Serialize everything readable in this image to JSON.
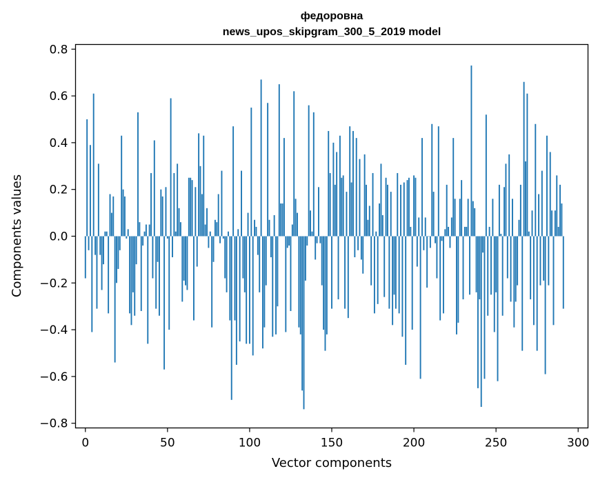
{
  "chart_data": {
    "type": "bar",
    "title": "федоровна",
    "subtitle": "news_upos_skipgram_300_5_2019 model",
    "xlabel": "Vector components",
    "ylabel": "Components values",
    "xlim": [
      -6,
      306
    ],
    "ylim": [
      -0.82,
      0.82
    ],
    "xticks": [
      0,
      50,
      100,
      150,
      200,
      250,
      300
    ],
    "xtick_labels": [
      "0",
      "50",
      "100",
      "150",
      "200",
      "250",
      "300"
    ],
    "yticks": [
      -0.8,
      -0.6,
      -0.4,
      -0.2,
      0.0,
      0.2,
      0.4,
      0.6,
      0.8
    ],
    "ytick_labels": [
      "−0.8",
      "−0.6",
      "−0.4",
      "−0.2",
      "0.0",
      "0.2",
      "0.4",
      "0.6",
      "0.8"
    ],
    "bar_color": "#1f77b4",
    "grid": false,
    "values": [
      -0.18,
      0.5,
      -0.06,
      0.39,
      -0.41,
      0.61,
      -0.08,
      -0.31,
      0.31,
      -0.08,
      -0.23,
      -0.12,
      0.02,
      0.02,
      -0.33,
      0.18,
      0.1,
      0.17,
      -0.54,
      -0.2,
      -0.14,
      -0.06,
      0.43,
      0.2,
      0.17,
      -0.01,
      0.03,
      -0.33,
      -0.38,
      -0.24,
      -0.34,
      -0.12,
      0.53,
      0.06,
      -0.32,
      -0.04,
      0.02,
      0.05,
      -0.46,
      0.05,
      0.27,
      -0.18,
      0.41,
      -0.31,
      -0.11,
      -0.34,
      0.2,
      0.17,
      -0.57,
      0.21,
      -0.01,
      -0.4,
      0.59,
      -0.09,
      0.27,
      0.02,
      0.31,
      0.12,
      0.06,
      -0.28,
      -0.19,
      -0.21,
      -0.23,
      0.25,
      0.25,
      0.24,
      -0.36,
      0.21,
      -0.13,
      0.44,
      0.3,
      0.18,
      0.43,
      0.05,
      0.12,
      -0.05,
      0.02,
      -0.39,
      -0.11,
      0.07,
      0.06,
      0.18,
      -0.03,
      0.28,
      -0.01,
      -0.18,
      -0.24,
      0.02,
      -0.36,
      -0.7,
      0.47,
      -0.36,
      -0.55,
      0.03,
      -0.45,
      0.28,
      -0.18,
      -0.24,
      -0.46,
      0.1,
      -0.46,
      0.55,
      -0.51,
      0.07,
      0.04,
      -0.08,
      -0.24,
      0.67,
      -0.48,
      -0.39,
      -0.21,
      0.57,
      0.07,
      -0.09,
      -0.43,
      0.09,
      -0.42,
      -0.3,
      0.65,
      0.14,
      0.14,
      0.42,
      -0.41,
      -0.05,
      -0.04,
      -0.32,
      0.05,
      0.62,
      0.16,
      0.1,
      -0.39,
      -0.42,
      -0.66,
      -0.74,
      -0.19,
      -0.04,
      0.56,
      0.11,
      0.02,
      0.53,
      -0.1,
      -0.03,
      0.21,
      -0.03,
      -0.21,
      -0.4,
      -0.49,
      -0.42,
      0.45,
      0.27,
      -0.31,
      0.4,
      0.22,
      0.36,
      -0.27,
      0.43,
      0.25,
      0.26,
      -0.31,
      0.19,
      -0.35,
      0.47,
      0.23,
      0.45,
      -0.09,
      0.42,
      -0.06,
      0.33,
      -0.1,
      -0.16,
      0.35,
      0.22,
      0.07,
      0.13,
      -0.21,
      0.27,
      -0.33,
      0.02,
      -0.29,
      0.14,
      0.31,
      0.09,
      -0.26,
      0.25,
      0.22,
      -0.31,
      0.19,
      -0.38,
      -0.25,
      -0.31,
      0.27,
      -0.33,
      0.22,
      -0.43,
      0.23,
      -0.55,
      0.24,
      0.25,
      0.04,
      -0.4,
      0.26,
      0.25,
      -0.13,
      0.08,
      -0.61,
      0.42,
      -0.06,
      0.08,
      -0.22,
      0.0,
      -0.05,
      0.48,
      0.19,
      -0.03,
      -0.18,
      0.47,
      -0.36,
      -0.02,
      -0.33,
      0.03,
      0.22,
      0.04,
      -0.05,
      0.08,
      0.42,
      0.16,
      -0.42,
      -0.37,
      0.16,
      0.24,
      -0.27,
      0.04,
      0.04,
      0.16,
      -0.25,
      0.73,
      0.15,
      0.12,
      -0.24,
      -0.65,
      -0.27,
      -0.73,
      -0.07,
      -0.61,
      0.52,
      -0.34,
      0.04,
      -0.25,
      0.16,
      -0.41,
      -0.24,
      -0.62,
      0.22,
      0.01,
      -0.34,
      0.21,
      0.31,
      -0.18,
      0.35,
      -0.28,
      0.16,
      -0.39,
      -0.28,
      -0.21,
      0.07,
      0.22,
      -0.49,
      0.66,
      0.32,
      0.61,
      0.02,
      -0.27,
      0.11,
      -0.38,
      0.48,
      -0.49,
      0.18,
      -0.21,
      0.28,
      -0.19,
      -0.59,
      0.43,
      -0.21,
      0.36,
      0.11,
      -0.38,
      0.11,
      0.26,
      0.04,
      0.22,
      0.14,
      -0.31
    ]
  }
}
